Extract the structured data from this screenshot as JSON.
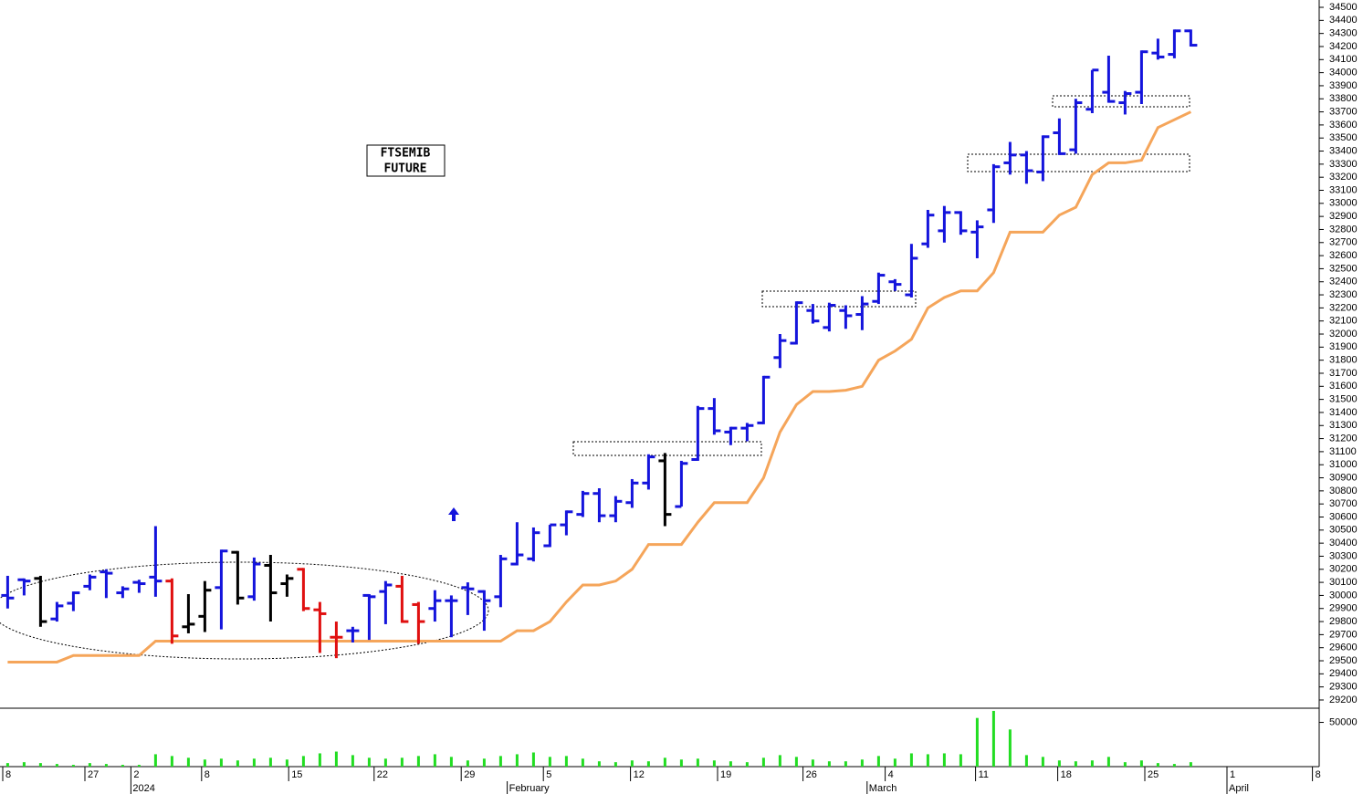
{
  "chart_data": {
    "type": "ohlc",
    "annotation": [
      "FTSEMIB",
      "FUTURE"
    ],
    "x": [
      0,
      1,
      2,
      3,
      4,
      5,
      6,
      7,
      8,
      9,
      10,
      11,
      12,
      13,
      14,
      15,
      16,
      17,
      18,
      19,
      20,
      21,
      22,
      23,
      24,
      25,
      26,
      27,
      28,
      29,
      30,
      31,
      32,
      33,
      34,
      35,
      36,
      37,
      38,
      39,
      40,
      41,
      42,
      43,
      44,
      45,
      46,
      47,
      48,
      49,
      50,
      51,
      52,
      53,
      54,
      55,
      56,
      57,
      58,
      59,
      60,
      61,
      62,
      63,
      64,
      65,
      66,
      67,
      68,
      69,
      70,
      71,
      72
    ],
    "open": [
      30000,
      30120,
      30130,
      29820,
      29940,
      30070,
      30180,
      30020,
      30100,
      30140,
      30110,
      29760,
      29840,
      30060,
      30330,
      29990,
      30230,
      30090,
      30200,
      29890,
      29680,
      29730,
      30000,
      30030,
      30070,
      29930,
      29900,
      29960,
      30060,
      30030,
      29990,
      30240,
      30280,
      30380,
      30540,
      30620,
      30780,
      30610,
      30710,
      30860,
      31030,
      30680,
      31040,
      31430,
      31250,
      31280,
      31320,
      31820,
      31930,
      32180,
      32050,
      32180,
      32150,
      32250,
      32400,
      32300,
      32690,
      32790,
      32930,
      32780,
      32950,
      33310,
      33370,
      33240,
      33540,
      33410,
      33720,
      33850,
      33770,
      33850,
      34150,
      34140,
      34320
    ],
    "high": [
      30150,
      30130,
      30150,
      29950,
      30030,
      30160,
      30200,
      30070,
      30120,
      30530,
      30130,
      30010,
      30110,
      30350,
      30340,
      30290,
      30310,
      30160,
      30210,
      29950,
      29800,
      29760,
      30010,
      30110,
      30150,
      29950,
      30040,
      30000,
      30100,
      30040,
      30310,
      30560,
      30520,
      30540,
      30650,
      30800,
      30820,
      30760,
      30890,
      31080,
      31090,
      31030,
      31450,
      31510,
      31290,
      31320,
      31680,
      32000,
      32250,
      32230,
      32240,
      32220,
      32290,
      32470,
      32420,
      32690,
      32950,
      32980,
      32940,
      32870,
      33300,
      33470,
      33400,
      33520,
      33650,
      33800,
      34020,
      34130,
      33860,
      34170,
      34260,
      34330,
      34330
    ],
    "low": [
      29900,
      30000,
      29760,
      29800,
      29880,
      30040,
      29980,
      29980,
      30020,
      29990,
      29630,
      29710,
      29720,
      29740,
      29930,
      29960,
      29800,
      29990,
      29880,
      29560,
      29520,
      29640,
      29660,
      29780,
      29790,
      29630,
      29800,
      29680,
      29850,
      29730,
      29910,
      30230,
      30260,
      30370,
      30460,
      30600,
      30560,
      30560,
      30670,
      30810,
      30530,
      30680,
      31030,
      31230,
      31150,
      31180,
      31310,
      31740,
      31920,
      32080,
      32020,
      32040,
      32030,
      32230,
      32330,
      32280,
      32660,
      32700,
      32760,
      32580,
      32850,
      33220,
      33150,
      33170,
      33370,
      33380,
      33690,
      33770,
      33680,
      33760,
      34100,
      34110,
      34200
    ],
    "close": [
      29980,
      30110,
      29800,
      29920,
      30020,
      30140,
      30170,
      30050,
      30090,
      30110,
      29690,
      29780,
      30040,
      30340,
      29980,
      30240,
      30020,
      30130,
      29900,
      29860,
      29680,
      29730,
      29990,
      30080,
      29800,
      29800,
      29960,
      29960,
      30050,
      29960,
      30280,
      30310,
      30480,
      30540,
      30640,
      30780,
      30610,
      30720,
      30860,
      31060,
      30620,
      31010,
      31430,
      31260,
      31280,
      31300,
      31670,
      31950,
      32240,
      32100,
      32220,
      32140,
      32230,
      32450,
      32380,
      32580,
      32910,
      32930,
      32790,
      32820,
      33280,
      33370,
      33250,
      33510,
      33380,
      33770,
      34020,
      33780,
      33840,
      34160,
      34120,
      34320,
      34210
    ],
    "colors": [
      "#1414dc",
      "#1414dc",
      "#000000",
      "#1414dc",
      "#1414dc",
      "#1414dc",
      "#1414dc",
      "#1414dc",
      "#1414dc",
      "#1414dc",
      "#e01010",
      "#000000",
      "#000000",
      "#1414dc",
      "#000000",
      "#1414dc",
      "#000000",
      "#000000",
      "#e01010",
      "#e01010",
      "#e01010",
      "#1414dc",
      "#1414dc",
      "#1414dc",
      "#e01010",
      "#e01010",
      "#1414dc",
      "#1414dc",
      "#1414dc",
      "#1414dc",
      "#1414dc",
      "#1414dc",
      "#1414dc",
      "#1414dc",
      "#1414dc",
      "#1414dc",
      "#1414dc",
      "#1414dc",
      "#1414dc",
      "#1414dc",
      "#000000",
      "#1414dc",
      "#1414dc",
      "#1414dc",
      "#1414dc",
      "#1414dc",
      "#1414dc",
      "#1414dc",
      "#1414dc",
      "#1414dc",
      "#1414dc",
      "#1414dc",
      "#1414dc",
      "#1414dc",
      "#1414dc",
      "#1414dc",
      "#1414dc",
      "#1414dc",
      "#1414dc",
      "#1414dc",
      "#1414dc",
      "#1414dc",
      "#1414dc",
      "#1414dc",
      "#1414dc",
      "#1414dc",
      "#1414dc",
      "#1414dc",
      "#1414dc",
      "#1414dc",
      "#1414dc",
      "#1414dc",
      "#1414dc"
    ],
    "stop": [
      29490,
      29490,
      29490,
      29490,
      29540,
      29540,
      29540,
      29540,
      29540,
      29650,
      29650,
      29650,
      29650,
      29650,
      29650,
      29650,
      29650,
      29650,
      29650,
      29650,
      29650,
      29650,
      29650,
      29650,
      29650,
      29650,
      29650,
      29650,
      29650,
      29650,
      29650,
      29730,
      29730,
      29800,
      29950,
      30080,
      30080,
      30110,
      30200,
      30390,
      30390,
      30390,
      30560,
      30710,
      30710,
      30710,
      30900,
      31250,
      31460,
      31560,
      31560,
      31570,
      31600,
      31800,
      31870,
      31960,
      32200,
      32280,
      32330,
      32330,
      32470,
      32780,
      32780,
      32780,
      32910,
      32970,
      33220,
      33310,
      33310,
      33330,
      33580,
      33640,
      33700
    ],
    "stop_color": "#f5a55a",
    "volume": [
      4000,
      5000,
      4000,
      3000,
      2000,
      4000,
      3000,
      2000,
      2000,
      14000,
      12000,
      10000,
      8000,
      9000,
      7000,
      9000,
      10000,
      8000,
      12000,
      15000,
      17000,
      13000,
      10000,
      9000,
      10000,
      12000,
      14000,
      11000,
      7000,
      9000,
      12000,
      14000,
      16000,
      11000,
      12000,
      9000,
      6000,
      5000,
      7000,
      6000,
      10000,
      8000,
      9000,
      7000,
      6000,
      5000,
      10000,
      13000,
      11000,
      8000,
      6000,
      6000,
      8000,
      12000,
      9000,
      15000,
      14000,
      15000,
      14000,
      55000,
      63000,
      42000,
      13000,
      11000,
      7000,
      6000,
      7000,
      11000,
      5000,
      7000,
      4000,
      3000,
      5000
    ],
    "volume_color": "#22dd22",
    "ylim": [
      29144,
      34556
    ],
    "yticks": [
      29200,
      29300,
      29400,
      29500,
      29600,
      29700,
      29800,
      29900,
      30000,
      30100,
      30200,
      30300,
      30400,
      30500,
      30600,
      30700,
      30800,
      30900,
      31000,
      31100,
      31200,
      31300,
      31400,
      31500,
      31600,
      31700,
      31800,
      31900,
      32000,
      32100,
      32200,
      32300,
      32400,
      32500,
      32600,
      32700,
      32800,
      32900,
      33000,
      33100,
      33200,
      33300,
      33400,
      33500,
      33600,
      33700,
      33800,
      33900,
      34000,
      34100,
      34200,
      34300,
      34400,
      34500
    ],
    "vlim": [
      0,
      65000
    ],
    "vticks": [
      50000
    ],
    "xlim": [
      -0.3,
      79.7
    ],
    "xticks": [
      {
        "value": -0.3,
        "label": "8"
      },
      {
        "value": 4.7,
        "label": "27"
      },
      {
        "value": 7.5,
        "label": "2"
      },
      {
        "value": 11.8,
        "label": "8"
      },
      {
        "value": 17.1,
        "label": "15"
      },
      {
        "value": 22.3,
        "label": "22"
      },
      {
        "value": 27.6,
        "label": "29"
      },
      {
        "value": 32.6,
        "label": "5"
      },
      {
        "value": 37.9,
        "label": "12"
      },
      {
        "value": 43.2,
        "label": "19"
      },
      {
        "value": 48.4,
        "label": "26"
      },
      {
        "value": 53.4,
        "label": "4"
      },
      {
        "value": 58.9,
        "label": "11"
      },
      {
        "value": 63.9,
        "label": "18"
      },
      {
        "value": 69.2,
        "label": "25"
      },
      {
        "value": 74.2,
        "label": "1"
      },
      {
        "value": 79.4,
        "label": "8"
      }
    ],
    "month_ticks": [
      {
        "value": 7.5,
        "label": "2024"
      },
      {
        "value": 30.4,
        "label": "February"
      },
      {
        "value": 52.3,
        "label": "March"
      },
      {
        "value": 74.2,
        "label": "April"
      }
    ]
  }
}
